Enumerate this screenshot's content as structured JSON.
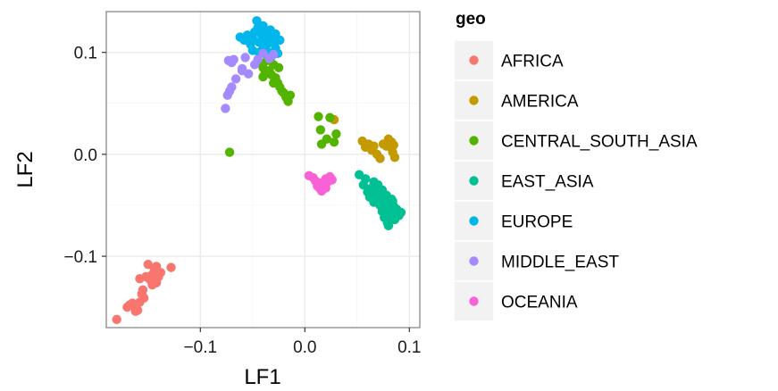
{
  "chart_data": {
    "type": "scatter",
    "xlabel": "LF1",
    "ylabel": "LF2",
    "xlim": [
      -0.19,
      0.11
    ],
    "ylim": [
      -0.17,
      0.14
    ],
    "x_ticks": [
      -0.1,
      0.0,
      0.1
    ],
    "x_tick_labels": [
      "−0.1",
      "0.0",
      "0.1"
    ],
    "y_ticks": [
      -0.1,
      0.0,
      0.1
    ],
    "y_tick_labels": [
      "−0.1",
      "0.0",
      "0.1"
    ],
    "grid": true,
    "legend": {
      "title": "geo",
      "position": "right"
    },
    "series": [
      {
        "name": "AFRICA",
        "color": "#F8766D",
        "points": [
          [
            -0.18,
            -0.162
          ],
          [
            -0.17,
            -0.15
          ],
          [
            -0.168,
            -0.148
          ],
          [
            -0.165,
            -0.146
          ],
          [
            -0.162,
            -0.15
          ],
          [
            -0.16,
            -0.153
          ],
          [
            -0.158,
            -0.145
          ],
          [
            -0.156,
            -0.137
          ],
          [
            -0.155,
            -0.133
          ],
          [
            -0.158,
            -0.122
          ],
          [
            -0.152,
            -0.12
          ],
          [
            -0.15,
            -0.108
          ],
          [
            -0.148,
            -0.123
          ],
          [
            -0.146,
            -0.118
          ],
          [
            -0.144,
            -0.113
          ],
          [
            -0.142,
            -0.11
          ],
          [
            -0.14,
            -0.12
          ],
          [
            -0.138,
            -0.116
          ],
          [
            -0.142,
            -0.126
          ],
          [
            -0.128,
            -0.111
          ],
          [
            -0.162,
            -0.154
          ],
          [
            -0.154,
            -0.141
          ],
          [
            -0.146,
            -0.128
          ]
        ]
      },
      {
        "name": "AMERICA",
        "color": "#C49A00",
        "points": [
          [
            0.028,
            0.034
          ],
          [
            0.055,
            0.013
          ],
          [
            0.058,
            0.007
          ],
          [
            0.061,
            0.01
          ],
          [
            0.064,
            0.004
          ],
          [
            0.066,
            0.008
          ],
          [
            0.069,
            0.0
          ],
          [
            0.072,
            -0.004
          ],
          [
            0.075,
            0.01
          ],
          [
            0.078,
            0.008
          ],
          [
            0.08,
            0.015
          ],
          [
            0.082,
            0.007
          ],
          [
            0.083,
            0.012
          ],
          [
            0.084,
            0.002
          ],
          [
            0.086,
            -0.003
          ],
          [
            0.085,
            0.009
          ],
          [
            0.081,
            0.011
          ]
        ]
      },
      {
        "name": "CENTRAL_SOUTH_ASIA",
        "color": "#53B400",
        "points": [
          [
            -0.072,
            0.002
          ],
          [
            0.013,
            0.037
          ],
          [
            0.015,
            0.024
          ],
          [
            0.016,
            0.01
          ],
          [
            0.024,
            0.036
          ],
          [
            0.021,
            0.015
          ],
          [
            0.03,
            0.02
          ],
          [
            0.028,
            0.012
          ],
          [
            -0.043,
            0.09
          ],
          [
            -0.04,
            0.085
          ],
          [
            -0.038,
            0.08
          ],
          [
            -0.036,
            0.092
          ],
          [
            -0.034,
            0.082
          ],
          [
            -0.032,
            0.078
          ],
          [
            -0.03,
            0.088
          ],
          [
            -0.028,
            0.075
          ],
          [
            -0.026,
            0.07
          ],
          [
            -0.024,
            0.066
          ],
          [
            -0.022,
            0.062
          ],
          [
            -0.02,
            0.06
          ],
          [
            -0.018,
            0.056
          ],
          [
            -0.016,
            0.052
          ],
          [
            -0.014,
            0.058
          ],
          [
            -0.03,
            0.07
          ],
          [
            -0.04,
            0.076
          ],
          [
            -0.025,
            0.085
          ]
        ]
      },
      {
        "name": "EAST_ASIA",
        "color": "#00C094",
        "points": [
          [
            0.052,
            -0.02
          ],
          [
            0.056,
            -0.03
          ],
          [
            0.058,
            -0.024
          ],
          [
            0.06,
            -0.037
          ],
          [
            0.062,
            -0.042
          ],
          [
            0.064,
            -0.033
          ],
          [
            0.066,
            -0.027
          ],
          [
            0.068,
            -0.04
          ],
          [
            0.07,
            -0.046
          ],
          [
            0.071,
            -0.038
          ],
          [
            0.072,
            -0.05
          ],
          [
            0.073,
            -0.043
          ],
          [
            0.074,
            -0.056
          ],
          [
            0.075,
            -0.041
          ],
          [
            0.076,
            -0.052
          ],
          [
            0.077,
            -0.06
          ],
          [
            0.078,
            -0.046
          ],
          [
            0.079,
            -0.067
          ],
          [
            0.08,
            -0.055
          ],
          [
            0.081,
            -0.049
          ],
          [
            0.082,
            -0.062
          ],
          [
            0.083,
            -0.044
          ],
          [
            0.084,
            -0.058
          ],
          [
            0.085,
            -0.051
          ],
          [
            0.086,
            -0.064
          ],
          [
            0.088,
            -0.054
          ],
          [
            0.09,
            -0.06
          ],
          [
            0.092,
            -0.057
          ],
          [
            0.066,
            -0.047
          ],
          [
            0.07,
            -0.03
          ],
          [
            0.074,
            -0.035
          ],
          [
            0.078,
            -0.04
          ],
          [
            0.08,
            -0.07
          ],
          [
            0.082,
            -0.052
          ],
          [
            0.084,
            -0.046
          ],
          [
            0.076,
            -0.062
          ]
        ]
      },
      {
        "name": "EUROPE",
        "color": "#00B6EB",
        "points": [
          [
            -0.062,
            0.115
          ],
          [
            -0.058,
            0.112
          ],
          [
            -0.055,
            0.117
          ],
          [
            -0.052,
            0.108
          ],
          [
            -0.05,
            0.114
          ],
          [
            -0.048,
            0.12
          ],
          [
            -0.046,
            0.131
          ],
          [
            -0.045,
            0.124
          ],
          [
            -0.044,
            0.11
          ],
          [
            -0.042,
            0.118
          ],
          [
            -0.04,
            0.104
          ],
          [
            -0.038,
            0.112
          ],
          [
            -0.037,
            0.12
          ],
          [
            -0.036,
            0.108
          ],
          [
            -0.035,
            0.1
          ],
          [
            -0.034,
            0.114
          ],
          [
            -0.033,
            0.122
          ],
          [
            -0.032,
            0.096
          ],
          [
            -0.03,
            0.11
          ],
          [
            -0.028,
            0.104
          ],
          [
            -0.026,
            0.099
          ],
          [
            -0.024,
            0.112
          ],
          [
            -0.05,
            0.102
          ],
          [
            -0.04,
            0.126
          ],
          [
            -0.044,
            0.1
          ],
          [
            -0.036,
            0.115
          ],
          [
            -0.028,
            0.118
          ]
        ]
      },
      {
        "name": "MIDDLE_EAST",
        "color": "#A58AFF",
        "points": [
          [
            -0.076,
            0.045
          ],
          [
            -0.074,
            0.058
          ],
          [
            -0.072,
            0.062
          ],
          [
            -0.07,
            0.066
          ],
          [
            -0.066,
            0.074
          ],
          [
            -0.06,
            0.084
          ],
          [
            -0.054,
            0.079
          ],
          [
            -0.048,
            0.088
          ],
          [
            -0.045,
            0.093
          ],
          [
            -0.04,
            0.099
          ],
          [
            -0.034,
            0.094
          ],
          [
            -0.03,
            0.098
          ],
          [
            -0.073,
            0.092
          ],
          [
            -0.07,
            0.09
          ],
          [
            -0.068,
            0.093
          ],
          [
            -0.057,
            0.095
          ],
          [
            -0.06,
            0.082
          ]
        ]
      },
      {
        "name": "OCEANIA",
        "color": "#FB61D7",
        "points": [
          [
            0.004,
            -0.021
          ],
          [
            0.008,
            -0.023
          ],
          [
            0.01,
            -0.026
          ],
          [
            0.012,
            -0.031
          ],
          [
            0.014,
            -0.033
          ],
          [
            0.016,
            -0.036
          ],
          [
            0.018,
            -0.03
          ],
          [
            0.02,
            -0.024
          ],
          [
            0.022,
            -0.027
          ],
          [
            0.024,
            -0.022
          ],
          [
            0.026,
            -0.025
          ],
          [
            0.014,
            -0.028
          ],
          [
            0.02,
            -0.033
          ]
        ]
      }
    ]
  }
}
